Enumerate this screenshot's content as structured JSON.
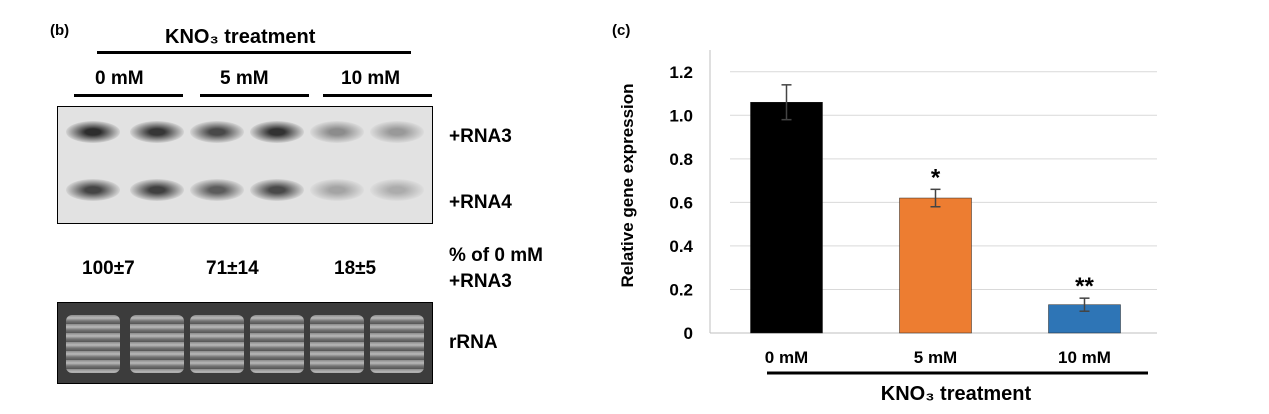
{
  "panel_b": {
    "panel_label": "(b)",
    "header": "KNO₃ treatment",
    "concentrations": [
      "0 mM",
      "5 mM",
      "10 mM"
    ],
    "band_labels": {
      "rna3": "+RNA3",
      "rna4": "+RNA4",
      "rrna": "rRNA"
    },
    "quant_label_line1": "% of 0 mM",
    "quant_label_line2": "+RNA3",
    "quant_values": [
      "100±7",
      "71±14",
      "18±5"
    ],
    "lanes": {
      "rna3_intensity": [
        0.95,
        0.9,
        0.8,
        0.92,
        0.45,
        0.38
      ],
      "rna4_intensity": [
        0.82,
        0.85,
        0.7,
        0.8,
        0.32,
        0.28
      ]
    }
  },
  "chart_data": {
    "type": "bar",
    "panel_label": "(c)",
    "categories": [
      "0 mM",
      "5 mM",
      "10 mM"
    ],
    "values": [
      1.06,
      0.62,
      0.13
    ],
    "errors": [
      0.08,
      0.04,
      0.03
    ],
    "colors": [
      "#000000",
      "#ed7d31",
      "#2e75b6"
    ],
    "significance": [
      "",
      "*",
      "**"
    ],
    "ylabel": "Relative gene expression",
    "xlabel": "KNO₃ treatment",
    "ylim": [
      0,
      1.3
    ],
    "yticks": [
      "0",
      "0.2",
      "0.4",
      "0.6",
      "0.8",
      "1.0",
      "1.2"
    ],
    "ytick_values": [
      0,
      0.2,
      0.4,
      0.6,
      0.8,
      1.0,
      1.2
    ],
    "grid": true
  }
}
